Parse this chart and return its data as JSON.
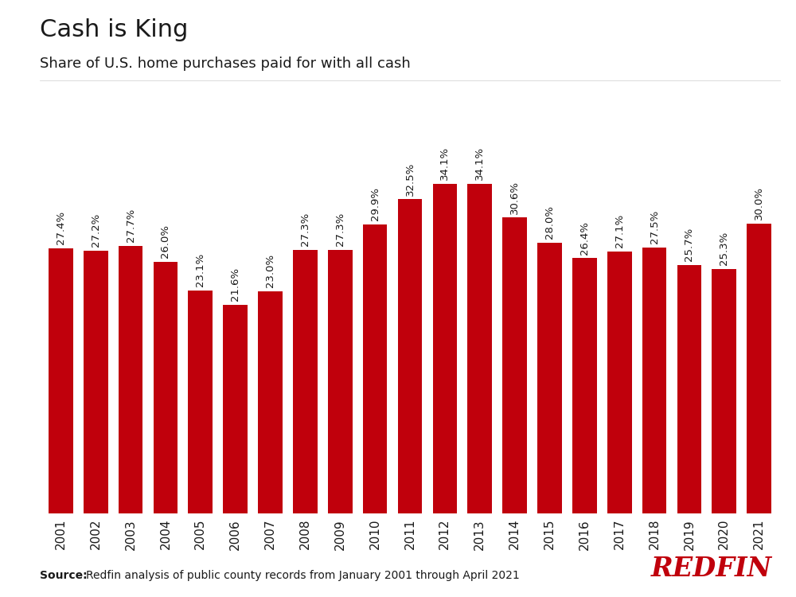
{
  "title": "Cash is King",
  "subtitle": "Share of U.S. home purchases paid for with all cash",
  "source_bold": "Source:",
  "source_text": "Redfin analysis of public county records from January 2001 through April 2021",
  "redfin_logo": "REDFIN",
  "categories": [
    "2001",
    "2002",
    "2003",
    "2004",
    "2005",
    "2006",
    "2007",
    "2008",
    "2009",
    "2010",
    "2011",
    "2012",
    "2013",
    "2014",
    "2015",
    "2016",
    "2017",
    "2018",
    "2019",
    "2020",
    "2021"
  ],
  "values": [
    27.4,
    27.2,
    27.7,
    26.0,
    23.1,
    21.6,
    23.0,
    27.3,
    27.3,
    29.9,
    32.5,
    34.1,
    34.1,
    30.6,
    28.0,
    26.4,
    27.1,
    27.5,
    25.7,
    25.3,
    30.0
  ],
  "bar_color": "#c0000c",
  "label_color": "#1a1a1a",
  "background_color": "#ffffff",
  "title_fontsize": 22,
  "subtitle_fontsize": 13,
  "label_fontsize": 9.5,
  "tick_fontsize": 11,
  "source_fontsize": 10,
  "logo_fontsize": 24,
  "ylim": [
    0,
    42
  ],
  "title_color": "#1a1a1a",
  "subtitle_color": "#1a1a1a"
}
